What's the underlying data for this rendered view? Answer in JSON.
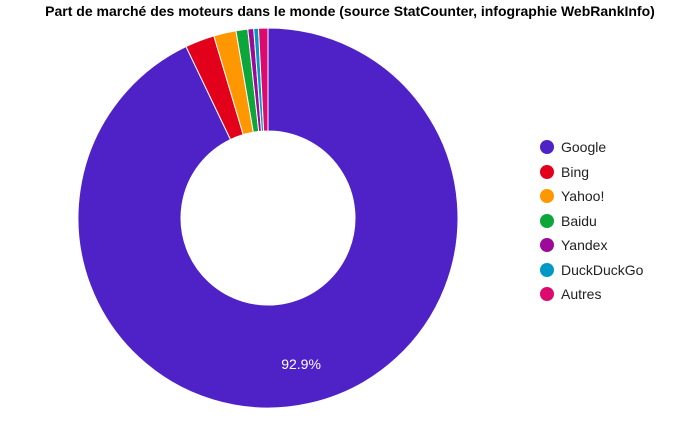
{
  "chart_data": {
    "type": "pie",
    "title": "Part de marché des moteurs dans le monde (source StatCounter, infographie WebRankInfo)",
    "categories": [
      "Google",
      "Bing",
      "Yahoo!",
      "Baidu",
      "Yandex",
      "DuckDuckGo",
      "Autres"
    ],
    "values": [
      92.9,
      2.5,
      1.9,
      1.0,
      0.5,
      0.4,
      0.8
    ],
    "colors": [
      "#4e22c6",
      "#e3001b",
      "#ff9800",
      "#0ca63a",
      "#9b0a99",
      "#0099c6",
      "#dc0a6e"
    ],
    "donut": true,
    "slice_labels": [
      "92.9%",
      "",
      "",
      "",
      "",
      "",
      ""
    ],
    "legend": {
      "placement": "right",
      "entries": [
        "Google",
        "Bing",
        "Yahoo!",
        "Baidu",
        "Yandex",
        "DuckDuckGo",
        "Autres"
      ]
    }
  }
}
